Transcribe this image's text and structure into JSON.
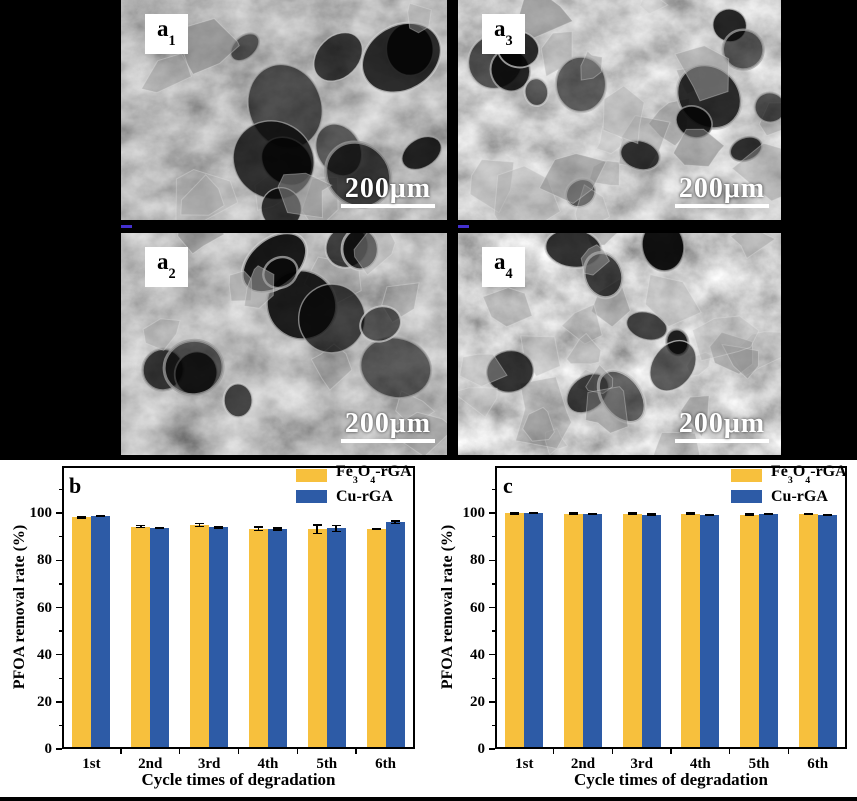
{
  "figure": {
    "background": "#000000",
    "chart_area_background": "#ffffff"
  },
  "sem": {
    "panels": [
      {
        "name": "a1",
        "label": "a",
        "sub": "1",
        "scale_text": "200μm",
        "position": "top-left"
      },
      {
        "name": "a3",
        "label": "a",
        "sub": "3",
        "scale_text": "200μm",
        "position": "top-right"
      },
      {
        "name": "a2",
        "label": "a",
        "sub": "2",
        "scale_text": "200μm",
        "position": "bottom-left"
      },
      {
        "name": "a4",
        "label": "a",
        "sub": "4",
        "scale_text": "200μm",
        "position": "bottom-right"
      }
    ]
  },
  "chart_data": [
    {
      "id": "b",
      "type": "bar",
      "panel_label": "b",
      "categories": [
        "1st",
        "2nd",
        "3rd",
        "4th",
        "5th",
        "6th"
      ],
      "series": [
        {
          "name": "Fe3O4-rGA",
          "color": "#F7C03D",
          "values": [
            98.2,
            94.3,
            95.0,
            93.4,
            93.2,
            93.3
          ],
          "errors": [
            0.4,
            0.8,
            1.0,
            1.1,
            2.2,
            0.6
          ]
        },
        {
          "name": "Cu-rGA",
          "color": "#2D5BA6",
          "values": [
            98.9,
            93.8,
            94.0,
            93.4,
            93.5,
            96.2
          ],
          "errors": [
            0.2,
            0.3,
            0.6,
            0.8,
            1.6,
            0.9
          ]
        }
      ],
      "xlabel": "Cycle times of degradation",
      "ylabel": "PFOA removal rate (%)",
      "yticks": [
        0,
        20,
        40,
        60,
        80,
        100
      ],
      "ylim": [
        0,
        120
      ],
      "grid": false,
      "legend_position": "top-right"
    },
    {
      "id": "c",
      "type": "bar",
      "panel_label": "c",
      "categories": [
        "1st",
        "2nd",
        "3rd",
        "4th",
        "5th",
        "6th"
      ],
      "series": [
        {
          "name": "Fe3O4-rGA",
          "color": "#F7C03D",
          "values": [
            99.9,
            99.8,
            99.8,
            99.8,
            99.4,
            99.7
          ],
          "errors": [
            0.15,
            0.2,
            0.25,
            0.2,
            0.25,
            0.2
          ]
        },
        {
          "name": "Cu-rGA",
          "color": "#2D5BA6",
          "values": [
            100.0,
            99.7,
            99.4,
            99.2,
            99.6,
            99.2
          ],
          "errors": [
            0.1,
            0.25,
            0.3,
            0.3,
            0.2,
            0.3
          ]
        }
      ],
      "xlabel": "Cycle times of degradation",
      "ylabel": "PFOA removal rate (%)",
      "yticks": [
        0,
        20,
        40,
        60,
        80,
        100
      ],
      "ylim": [
        0,
        120
      ],
      "grid": false,
      "legend_position": "top-right"
    }
  ]
}
